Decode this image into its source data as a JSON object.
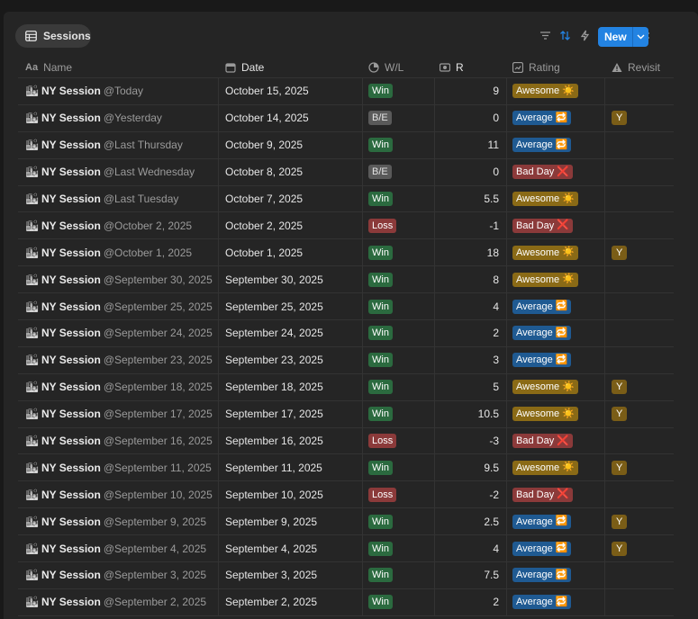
{
  "view": {
    "label": "Sessions"
  },
  "toolbar": {
    "new_label": "New"
  },
  "columns": {
    "name": "Name",
    "date": "Date",
    "wl": "W/L",
    "r": "R",
    "rating": "Rating",
    "revisit": "Revisit"
  },
  "colors": {
    "accent": "#2383e2",
    "win": "#2b6a3f",
    "loss": "#8b3a3a",
    "be": "#5a5a5a",
    "awesome": "#8a6a16",
    "average": "#1f5a92",
    "badday": "#8b3a3a"
  },
  "rows": [
    {
      "title": "NY Session",
      "mention": "@Today",
      "date": "October 15, 2025",
      "wl": "Win",
      "r": "9",
      "rating": "Awesome",
      "revisit": ""
    },
    {
      "title": "NY Session",
      "mention": "@Yesterday",
      "date": "October 14, 2025",
      "wl": "B/E",
      "r": "0",
      "rating": "Average",
      "revisit": "Y"
    },
    {
      "title": "NY Session",
      "mention": "@Last Thursday",
      "date": "October 9, 2025",
      "wl": "Win",
      "r": "11",
      "rating": "Average",
      "revisit": ""
    },
    {
      "title": "NY Session",
      "mention": "@Last Wednesday",
      "date": "October 8, 2025",
      "wl": "B/E",
      "r": "0",
      "rating": "Bad Day",
      "revisit": ""
    },
    {
      "title": "NY Session",
      "mention": "@Last Tuesday",
      "date": "October 7, 2025",
      "wl": "Win",
      "r": "5.5",
      "rating": "Awesome",
      "revisit": ""
    },
    {
      "title": "NY Session",
      "mention": "@October 2, 2025",
      "date": "October 2, 2025",
      "wl": "Loss",
      "r": "-1",
      "rating": "Bad Day",
      "revisit": ""
    },
    {
      "title": "NY Session",
      "mention": "@October 1, 2025",
      "date": "October 1, 2025",
      "wl": "Win",
      "r": "18",
      "rating": "Awesome",
      "revisit": "Y"
    },
    {
      "title": "NY Session",
      "mention": "@September 30, 2025",
      "date": "September 30, 2025",
      "wl": "Win",
      "r": "8",
      "rating": "Awesome",
      "revisit": ""
    },
    {
      "title": "NY Session",
      "mention": "@September 25, 2025",
      "date": "September 25, 2025",
      "wl": "Win",
      "r": "4",
      "rating": "Average",
      "revisit": ""
    },
    {
      "title": "NY Session",
      "mention": "@September 24, 2025",
      "date": "September 24, 2025",
      "wl": "Win",
      "r": "2",
      "rating": "Average",
      "revisit": ""
    },
    {
      "title": "NY Session",
      "mention": "@September 23, 2025",
      "date": "September 23, 2025",
      "wl": "Win",
      "r": "3",
      "rating": "Average",
      "revisit": ""
    },
    {
      "title": "NY Session",
      "mention": "@September 18, 2025",
      "date": "September 18, 2025",
      "wl": "Win",
      "r": "5",
      "rating": "Awesome",
      "revisit": "Y"
    },
    {
      "title": "NY Session",
      "mention": "@September 17, 2025",
      "date": "September 17, 2025",
      "wl": "Win",
      "r": "10.5",
      "rating": "Awesome",
      "revisit": "Y"
    },
    {
      "title": "NY Session",
      "mention": "@September 16, 2025",
      "date": "September 16, 2025",
      "wl": "Loss",
      "r": "-3",
      "rating": "Bad Day",
      "revisit": ""
    },
    {
      "title": "NY Session",
      "mention": "@September 11, 2025",
      "date": "September 11, 2025",
      "wl": "Win",
      "r": "9.5",
      "rating": "Awesome",
      "revisit": "Y"
    },
    {
      "title": "NY Session",
      "mention": "@September 10, 2025",
      "date": "September 10, 2025",
      "wl": "Loss",
      "r": "-2",
      "rating": "Bad Day",
      "revisit": ""
    },
    {
      "title": "NY Session",
      "mention": "@September 9, 2025",
      "date": "September 9, 2025",
      "wl": "Win",
      "r": "2.5",
      "rating": "Average",
      "revisit": "Y"
    },
    {
      "title": "NY Session",
      "mention": "@September 4, 2025",
      "date": "September 4, 2025",
      "wl": "Win",
      "r": "4",
      "rating": "Average",
      "revisit": "Y"
    },
    {
      "title": "NY Session",
      "mention": "@September 3, 2025",
      "date": "September 3, 2025",
      "wl": "Win",
      "r": "7.5",
      "rating": "Average",
      "revisit": ""
    },
    {
      "title": "NY Session",
      "mention": "@September 2, 2025",
      "date": "September 2, 2025",
      "wl": "Win",
      "r": "2",
      "rating": "Average",
      "revisit": ""
    }
  ]
}
